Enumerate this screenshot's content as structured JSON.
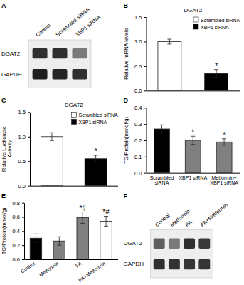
{
  "chart_data": [
    {
      "type": "heatmap",
      "annotations": [
        "A"
      ],
      "x": [
        "Control",
        "Scrambled siRNA",
        "XBP1 siRNA"
      ],
      "y": [
        "DGAT2",
        "GAPDH"
      ],
      "values": [
        [
          0.85,
          0.85,
          0.6
        ],
        [
          0.9,
          0.88,
          0.85
        ]
      ]
    },
    {
      "type": "bar",
      "annotations": [
        "B"
      ],
      "title": "DGAT2",
      "ylabel": "Relative mRNA levels",
      "categories": [
        "Scrambled siRNA",
        "XBP1 siRNA"
      ],
      "values": [
        1.0,
        0.35
      ],
      "errors": [
        0.05,
        0.08
      ],
      "colors": [
        "white",
        "black"
      ],
      "ylim": [
        0.0,
        1.5
      ],
      "yticks": [
        {
          "value": 0.0,
          "label": "0.0"
        },
        0.5,
        {
          "value": 1.0,
          "label": "1.0"
        },
        1.5
      ],
      "significance": [
        null,
        "*"
      ],
      "legend": "upper right",
      "tick_labels": "y"
    },
    {
      "type": "bar",
      "annotations": [
        "C"
      ],
      "title": "DGAT2",
      "ylabel": "Relative Luciferase\nActivity",
      "categories": [
        "Scrambled siRNA",
        "XBP1 siRNA"
      ],
      "values": [
        1.0,
        0.55
      ],
      "errors": [
        0.08,
        0.07
      ],
      "colors": [
        "white",
        "black"
      ],
      "ylim": [
        0.0,
        1.5
      ],
      "yticks": [
        {
          "value": 0.0,
          "label": "0.0"
        },
        0.5,
        {
          "value": 1.0,
          "label": "1.0"
        },
        1.5
      ],
      "significance": [
        null,
        "*"
      ],
      "legend": "upper right",
      "tick_labels": "y"
    },
    {
      "type": "bar",
      "annotations": [
        "D"
      ],
      "ylabel": "TG/Protein(mmol/g)",
      "categories": [
        "Scrambled\nsiRNA",
        "XBP1 siRNA",
        "Metformin+\nXBP1 siRNA"
      ],
      "values": [
        0.27,
        0.2,
        0.19
      ],
      "errors": [
        0.025,
        0.025,
        0.02
      ],
      "colors": [
        "black",
        "gray",
        "gray"
      ],
      "ylim": [
        0.0,
        0.4
      ],
      "yticks": [
        {
          "value": 0.0,
          "label": "0.0"
        },
        0.1,
        0.2,
        0.3,
        0.4
      ],
      "significance": [
        null,
        "*",
        "*"
      ]
    },
    {
      "type": "bar",
      "annotations": [
        "E"
      ],
      "ylabel": "TG/Protein(mmol/g)",
      "categories": [
        "Control",
        "Metformin",
        "PA",
        "PA+Metformin"
      ],
      "values": [
        0.3,
        0.26,
        0.59,
        0.54
      ],
      "errors": [
        0.06,
        0.06,
        0.08,
        0.07
      ],
      "colors": [
        "black",
        "gray",
        "gray",
        "white"
      ],
      "ylim": [
        0.0,
        0.8
      ],
      "yticks": [
        {
          "value": 0.0,
          "label": "0.0"
        },
        0.2,
        0.4,
        0.6,
        0.8
      ],
      "significance": [
        null,
        null,
        "*#",
        "*#"
      ]
    },
    {
      "type": "heatmap",
      "annotations": [
        "F"
      ],
      "x": [
        "Control",
        "Metformin",
        "PA",
        "PA+Metformin"
      ],
      "y": [
        "DGAT2",
        "GAPDH"
      ],
      "values": [
        [
          0.7,
          0.6,
          0.85,
          0.82
        ],
        [
          0.85,
          0.84,
          0.83,
          0.83
        ]
      ]
    }
  ]
}
